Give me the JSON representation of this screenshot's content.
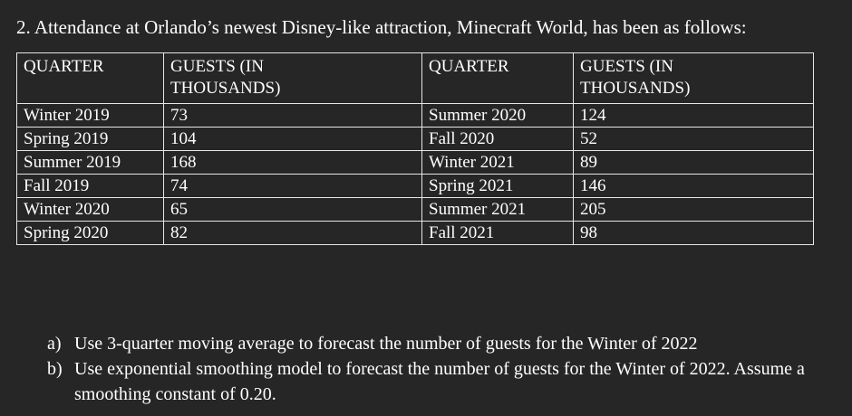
{
  "heading": "2. Attendance at Orlando’s newest Disney-like attraction, Minecraft World, has been as follows:",
  "table": {
    "headers": [
      "QUARTER",
      "GUESTS (IN THOUSANDS)",
      "QUARTER",
      "GUESTS (IN THOUSANDS)"
    ],
    "rows": [
      [
        "Winter 2019",
        "73",
        "Summer 2020",
        "124"
      ],
      [
        "Spring 2019",
        "104",
        "Fall 2020",
        "52"
      ],
      [
        "Summer 2019",
        "168",
        "Winter 2021",
        "89"
      ],
      [
        "Fall 2019",
        "74",
        "Spring 2021",
        "146"
      ],
      [
        "Winter 2020",
        "65",
        "Summer 2021",
        "205"
      ],
      [
        "Spring 2020",
        "82",
        "Fall 2021",
        "98"
      ]
    ]
  },
  "questions": [
    {
      "marker": "a)",
      "text": "Use 3-quarter moving average to forecast the number of guests for the Winter of 2022"
    },
    {
      "marker": "b)",
      "text": "Use exponential smoothing model to forecast the number of guests for the Winter of 2022. Assume a smoothing constant of 0.20."
    }
  ]
}
